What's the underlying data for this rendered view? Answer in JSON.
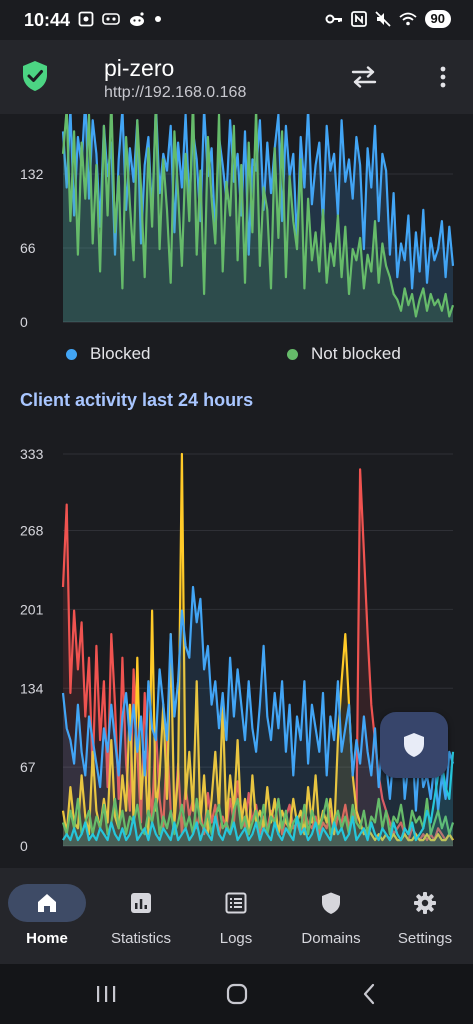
{
  "status_bar": {
    "time": "10:44",
    "battery": "90"
  },
  "app_bar": {
    "title": "pi-zero",
    "subtitle": "http://192.168.0.168"
  },
  "queries_chart": {
    "y_ticks": [
      "132",
      "66",
      "0"
    ],
    "legend": {
      "blocked": "Blocked",
      "not_blocked": "Not blocked"
    }
  },
  "client_section": {
    "title": "Client activity last 24 hours"
  },
  "nav": {
    "items": [
      {
        "label": "Home",
        "icon": "home-icon",
        "active": true
      },
      {
        "label": "Statistics",
        "icon": "statistics-icon",
        "active": false
      },
      {
        "label": "Logs",
        "icon": "logs-icon",
        "active": false
      },
      {
        "label": "Domains",
        "icon": "shield-icon",
        "active": false
      },
      {
        "label": "Settings",
        "icon": "gear-icon",
        "active": false
      }
    ]
  },
  "colors": {
    "blocked": "#42a5f5",
    "not_blocked": "#66bb6a",
    "client_red": "#ef5350",
    "client_yellow": "#ffca28",
    "client_blue": "#42a5f5",
    "client_green": "#66bb6a",
    "client_cyan": "#26c6da",
    "accent": "#a9c6ff"
  },
  "chart_data": [
    {
      "type": "line",
      "title": "",
      "ylim": [
        0,
        198
      ],
      "y_ticks": [
        0,
        66,
        132
      ],
      "grid": true,
      "legend": "bottom",
      "series": [
        {
          "name": "Blocked",
          "values": [
            170,
            120,
            190,
            95,
            165,
            140,
            200,
            110,
            180,
            150,
            85,
            175,
            130,
            160,
            60,
            145,
            190,
            100,
            155,
            125,
            180,
            70,
            140,
            165,
            95,
            195,
            115,
            150,
            135,
            175,
            80,
            160,
            120,
            185,
            105,
            170,
            145,
            90,
            190,
            130,
            155,
            75,
            165,
            140,
            110,
            180,
            125,
            150,
            95,
            170,
            60,
            145,
            135,
            180,
            100,
            160,
            115,
            155,
            185,
            90,
            175,
            130,
            150,
            70,
            165,
            120,
            190,
            105,
            140,
            160,
            85,
            175,
            135,
            150,
            95,
            180,
            125,
            145,
            110,
            165,
            140,
            65,
            155,
            120,
            175,
            90,
            150,
            135,
            60,
            115,
            40,
            70,
            55,
            95,
            30,
            80,
            45,
            100,
            35,
            75,
            55,
            65,
            90,
            40,
            85,
            50
          ]
        },
        {
          "name": "Not blocked",
          "values": [
            150,
            190,
            90,
            170,
            60,
            160,
            110,
            185,
            70,
            140,
            45,
            175,
            95,
            200,
            80,
            130,
            30,
            165,
            105,
            55,
            180,
            120,
            40,
            155,
            85,
            195,
            65,
            145,
            100,
            35,
            170,
            115,
            50,
            150,
            90,
            200,
            60,
            135,
            25,
            165,
            110,
            70,
            185,
            45,
            125,
            95,
            175,
            55,
            140,
            35,
            160,
            80,
            190,
            50,
            120,
            100,
            30,
            155,
            75,
            170,
            40,
            130,
            90,
            65,
            145,
            30,
            110,
            55,
            80,
            45,
            100,
            35,
            70,
            50,
            95,
            40,
            85,
            25,
            65,
            55,
            75,
            30,
            60,
            45,
            90,
            35,
            70,
            50,
            40,
            25,
            20,
            10,
            30,
            15,
            25,
            5,
            20,
            30,
            10,
            25,
            15,
            20,
            10,
            25,
            5,
            15
          ]
        }
      ]
    },
    {
      "type": "line",
      "title": "Client activity last 24 hours",
      "ylim": [
        0,
        333
      ],
      "y_ticks": [
        0,
        67,
        134,
        201,
        268,
        333
      ],
      "grid": true,
      "series": [
        {
          "values": [
            220,
            290,
            130,
            200,
            150,
            190,
            110,
            160,
            60,
            170,
            90,
            140,
            50,
            180,
            120,
            40,
            160,
            70,
            30,
            150,
            80,
            20,
            130,
            60,
            25,
            100,
            40,
            15,
            90,
            30,
            20,
            70,
            10,
            50,
            25,
            40,
            15,
            30,
            10,
            45,
            20,
            35,
            10,
            25,
            15,
            40,
            20,
            55,
            30,
            15,
            45,
            20,
            35,
            10,
            25,
            15,
            30,
            20,
            40,
            10,
            25,
            35,
            15,
            20,
            10,
            30,
            20,
            15,
            25,
            10,
            20,
            15,
            30,
            10,
            25,
            20,
            35,
            15,
            30,
            20,
            320,
            250,
            180,
            120,
            90,
            60,
            40,
            30,
            20,
            10,
            15,
            20,
            10,
            5,
            15,
            10,
            5,
            10,
            5,
            10,
            5,
            15,
            10,
            5,
            10,
            5
          ]
        },
        {
          "values": [
            30,
            10,
            50,
            20,
            15,
            60,
            25,
            10,
            80,
            30,
            15,
            40,
            20,
            90,
            25,
            15,
            60,
            30,
            120,
            20,
            160,
            40,
            80,
            10,
            200,
            30,
            60,
            120,
            40,
            180,
            20,
            60,
            333,
            40,
            80,
            30,
            140,
            20,
            60,
            10,
            40,
            80,
            30,
            120,
            20,
            60,
            30,
            90,
            20,
            40,
            10,
            60,
            20,
            30,
            15,
            50,
            20,
            40,
            10,
            30,
            20,
            15,
            40,
            20,
            30,
            10,
            50,
            20,
            60,
            15,
            30,
            20,
            40,
            10,
            90,
            140,
            180,
            120,
            60,
            30,
            20,
            10,
            15,
            10,
            5,
            10,
            5,
            10,
            5,
            10,
            5,
            5,
            10,
            5,
            5,
            10,
            5,
            5,
            10,
            5,
            5,
            10,
            5,
            5,
            10,
            5
          ]
        },
        {
          "values": [
            130,
            100,
            90,
            70,
            120,
            80,
            60,
            110,
            90,
            70,
            50,
            100,
            80,
            120,
            90,
            60,
            110,
            130,
            90,
            120,
            80,
            110,
            60,
            140,
            100,
            90,
            150,
            120,
            90,
            180,
            110,
            140,
            200,
            170,
            160,
            220,
            190,
            210,
            150,
            170,
            120,
            140,
            100,
            130,
            90,
            160,
            110,
            150,
            120,
            90,
            140,
            100,
            80,
            120,
            170,
            110,
            90,
            130,
            100,
            140,
            80,
            120,
            60,
            110,
            90,
            140,
            70,
            120,
            100,
            80,
            130,
            60,
            110,
            90,
            140,
            80,
            100,
            120,
            60,
            90,
            70,
            110,
            80,
            60,
            100,
            50,
            90,
            70,
            40,
            80,
            60,
            100,
            40,
            70,
            90,
            30,
            80,
            50,
            60,
            40,
            70,
            30,
            60,
            40,
            80,
            70
          ]
        },
        {
          "values": [
            20,
            10,
            30,
            15,
            40,
            10,
            20,
            30,
            10,
            25,
            15,
            35,
            10,
            20,
            40,
            15,
            30,
            10,
            25,
            20,
            35,
            15,
            10,
            30,
            20,
            40,
            10,
            25,
            15,
            30,
            10,
            20,
            35,
            15,
            25,
            10,
            40,
            20,
            15,
            30,
            10,
            25,
            35,
            15,
            20,
            10,
            30,
            40,
            15,
            25,
            10,
            20,
            30,
            15,
            35,
            10,
            25,
            20,
            40,
            15,
            30,
            10,
            20,
            25,
            15,
            35,
            10,
            30,
            20,
            15,
            25,
            40,
            10,
            20,
            30,
            15,
            25,
            10,
            35,
            20,
            15,
            30,
            10,
            25,
            20,
            40,
            15,
            30,
            10,
            25,
            20,
            35,
            15,
            10,
            30,
            20,
            25,
            15,
            40,
            10,
            20,
            30,
            15,
            25,
            10,
            20
          ]
        },
        {
          "values": [
            5,
            10,
            5,
            15,
            5,
            10,
            20,
            5,
            10,
            5,
            15,
            10,
            5,
            20,
            10,
            5,
            15,
            5,
            10,
            25,
            5,
            10,
            15,
            5,
            20,
            10,
            5,
            15,
            10,
            5,
            20,
            5,
            10,
            15,
            5,
            10,
            20,
            5,
            15,
            10,
            5,
            25,
            10,
            5,
            15,
            10,
            20,
            5,
            10,
            15,
            5,
            10,
            20,
            5,
            15,
            10,
            5,
            20,
            10,
            5,
            15,
            10,
            5,
            25,
            10,
            15,
            5,
            10,
            20,
            5,
            15,
            10,
            5,
            20,
            10,
            15,
            5,
            10,
            25,
            5,
            10,
            15,
            5,
            20,
            10,
            5,
            15,
            10,
            5,
            20,
            10,
            5,
            15,
            10,
            20,
            5,
            10,
            15,
            30,
            20,
            40,
            60,
            70,
            50,
            40,
            80
          ]
        }
      ]
    }
  ]
}
